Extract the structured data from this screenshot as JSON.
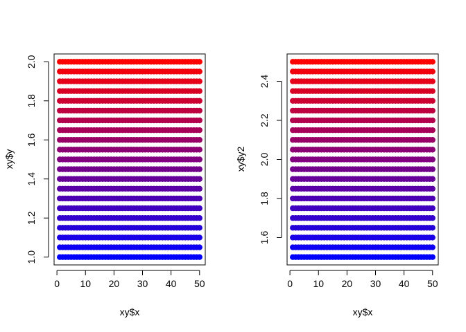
{
  "chart_data": [
    {
      "type": "scatter",
      "xlabel": "xy$x",
      "ylabel": "xy$y",
      "x_range": [
        1,
        50
      ],
      "y_range": [
        1.0,
        2.0
      ],
      "xlim": [
        -1,
        52
      ],
      "ylim": [
        0.96,
        2.04
      ],
      "x_ticks": [
        0,
        10,
        20,
        30,
        40,
        50
      ],
      "x_tick_labels": [
        "0",
        "10",
        "20",
        "30",
        "40",
        "50"
      ],
      "y_ticks": [
        1.0,
        1.2,
        1.4,
        1.6,
        1.8,
        2.0
      ],
      "y_tick_labels": [
        "1.0",
        "1.2",
        "1.4",
        "1.6",
        "1.8",
        "2.0"
      ],
      "y_levels": [
        1.0,
        1.05,
        1.1,
        1.15,
        1.2,
        1.25,
        1.3,
        1.35,
        1.4,
        1.45,
        1.5,
        1.55,
        1.6,
        1.65,
        1.7,
        1.75,
        1.8,
        1.85,
        1.9,
        1.95,
        2.0
      ],
      "color_low": "#0000ff",
      "color_high": "#ff0000",
      "grid": false
    },
    {
      "type": "scatter",
      "xlabel": "xy$x",
      "ylabel": "xy$y2",
      "x_range": [
        1,
        50
      ],
      "y_range": [
        1.5,
        2.5
      ],
      "xlim": [
        -1,
        52
      ],
      "ylim": [
        1.46,
        2.54
      ],
      "x_ticks": [
        0,
        10,
        20,
        30,
        40,
        50
      ],
      "x_tick_labels": [
        "0",
        "10",
        "20",
        "30",
        "40",
        "50"
      ],
      "y_ticks": [
        1.6,
        1.8,
        2.0,
        2.2,
        2.4
      ],
      "y_tick_labels": [
        "1.6",
        "1.8",
        "2.0",
        "2.2",
        "2.4"
      ],
      "y_levels": [
        1.5,
        1.55,
        1.6,
        1.65,
        1.7,
        1.75,
        1.8,
        1.85,
        1.9,
        1.95,
        2.0,
        2.05,
        2.1,
        2.15,
        2.2,
        2.25,
        2.3,
        2.35,
        2.4,
        2.45,
        2.5
      ],
      "color_low": "#0000ff",
      "color_high": "#ff0000",
      "grid": false
    }
  ]
}
